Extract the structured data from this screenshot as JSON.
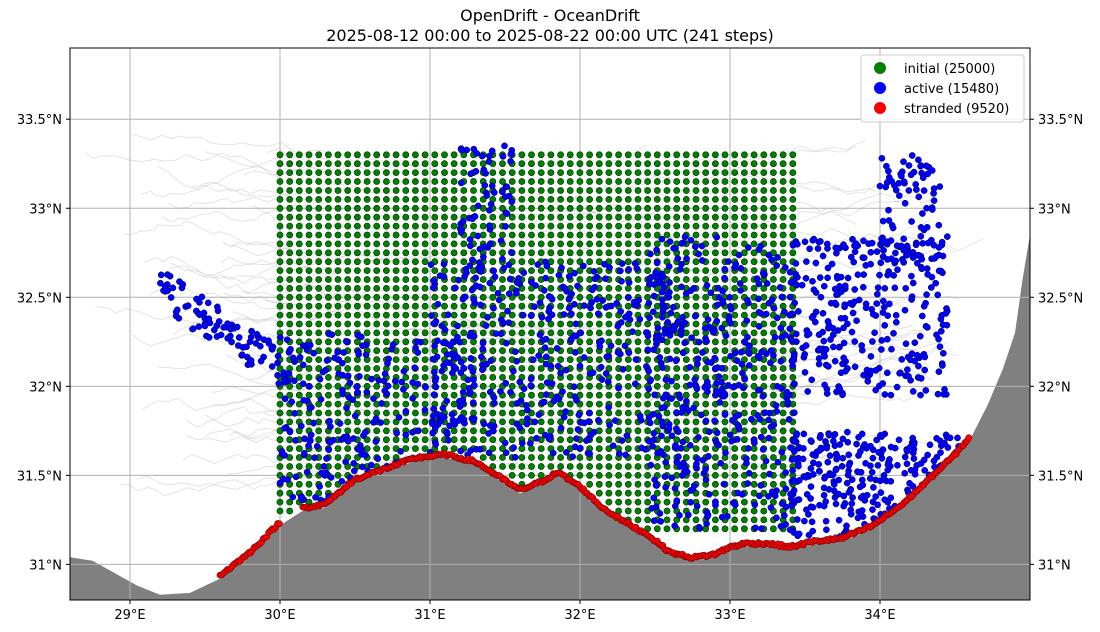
{
  "title": "OpenDrift - OceanDrift",
  "subtitle": "2025-08-12 00:00 to 2025-08-22 00:00 UTC (241 steps)",
  "colors": {
    "land": "#808080",
    "trajectory": "#b0b0b0",
    "initial": "#008000",
    "active": "#0000ff",
    "stranded": "#ff0000",
    "grid": "#b0b0b0"
  },
  "chart_data": {
    "type": "scatter",
    "title": "OpenDrift - OceanDrift",
    "subtitle": "2025-08-12 00:00 to 2025-08-22 00:00 UTC (241 steps)",
    "xlim": [
      28.6,
      35.0
    ],
    "ylim": [
      30.8,
      33.9
    ],
    "x_ticks": [
      29,
      30,
      31,
      32,
      33,
      34
    ],
    "x_tick_labels": [
      "29°E",
      "30°E",
      "31°E",
      "32°E",
      "33°E",
      "34°E"
    ],
    "y_ticks": [
      31.0,
      31.5,
      32.0,
      32.5,
      33.0,
      33.5
    ],
    "y_tick_labels": [
      "31°N",
      "31.5°N",
      "32°N",
      "32.5°N",
      "33°N",
      "33.5°N"
    ],
    "grid": true,
    "legend_position": "top-right",
    "series": [
      {
        "name": "initial (25000)",
        "color": "#008000",
        "count": 25000,
        "extent": {
          "lon": [
            30.0,
            33.42
          ],
          "lat": [
            31.2,
            33.3
          ]
        }
      },
      {
        "name": "active (15480)",
        "color": "#0000ff",
        "count": 15480,
        "extent": {
          "lon": [
            29.2,
            34.6
          ],
          "lat": [
            31.0,
            33.4
          ]
        }
      },
      {
        "name": "stranded (9520)",
        "color": "#ff0000",
        "count": 9520,
        "extent": {
          "lon": [
            29.6,
            34.6
          ],
          "lat": [
            31.0,
            31.7
          ]
        }
      }
    ],
    "coastline": [
      [
        28.6,
        31.04
      ],
      [
        28.75,
        31.02
      ],
      [
        28.9,
        30.95
      ],
      [
        29.05,
        30.88
      ],
      [
        29.2,
        30.83
      ],
      [
        29.4,
        30.84
      ],
      [
        29.6,
        30.92
      ],
      [
        29.8,
        31.05
      ],
      [
        30.0,
        31.22
      ],
      [
        30.15,
        31.3
      ],
      [
        30.3,
        31.32
      ],
      [
        30.5,
        31.46
      ],
      [
        30.7,
        31.52
      ],
      [
        30.9,
        31.58
      ],
      [
        31.1,
        31.6
      ],
      [
        31.3,
        31.56
      ],
      [
        31.45,
        31.48
      ],
      [
        31.6,
        31.4
      ],
      [
        31.75,
        31.45
      ],
      [
        31.85,
        31.5
      ],
      [
        32.0,
        31.42
      ],
      [
        32.15,
        31.3
      ],
      [
        32.3,
        31.22
      ],
      [
        32.45,
        31.15
      ],
      [
        32.6,
        31.05
      ],
      [
        32.75,
        31.02
      ],
      [
        32.9,
        31.04
      ],
      [
        33.0,
        31.08
      ],
      [
        33.1,
        31.1
      ],
      [
        33.25,
        31.1
      ],
      [
        33.4,
        31.08
      ],
      [
        33.55,
        31.11
      ],
      [
        33.75,
        31.13
      ],
      [
        33.95,
        31.2
      ],
      [
        34.15,
        31.32
      ],
      [
        34.35,
        31.48
      ],
      [
        34.5,
        31.6
      ],
      [
        34.6,
        31.7
      ],
      [
        34.72,
        31.9
      ],
      [
        34.82,
        32.1
      ],
      [
        34.9,
        32.3
      ],
      [
        34.95,
        32.6
      ],
      [
        35.0,
        32.85
      ]
    ]
  },
  "legend": {
    "items": [
      {
        "label": "initial (25000)",
        "color": "#008000"
      },
      {
        "label": "active (15480)",
        "color": "#0000ff"
      },
      {
        "label": "stranded (9520)",
        "color": "#ff0000"
      }
    ]
  }
}
